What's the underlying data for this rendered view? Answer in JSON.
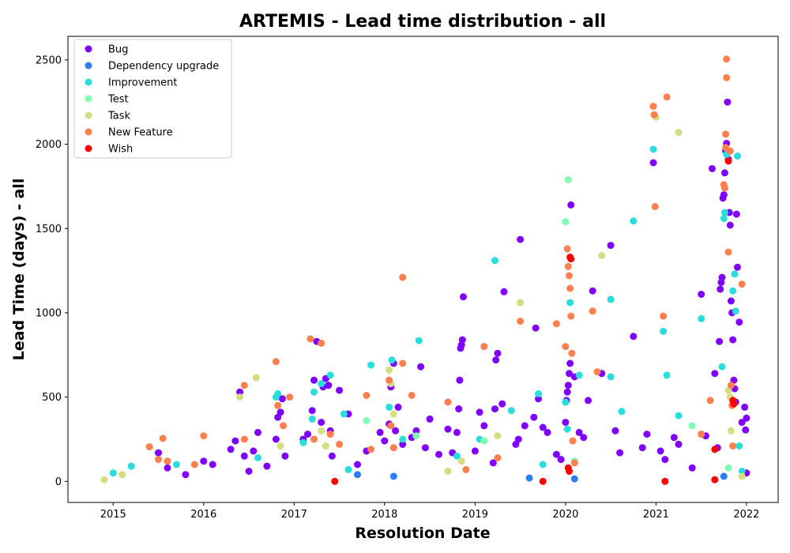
{
  "chart_data": {
    "type": "scatter",
    "title": "ARTEMIS - Lead time distribution - all",
    "xlabel": "Resolution Date",
    "ylabel": "Lead Time (days) - all",
    "xlim": [
      2014.5,
      2022.35
    ],
    "ylim": [
      -125,
      2640
    ],
    "xticks": [
      2015,
      2016,
      2017,
      2018,
      2019,
      2020,
      2021,
      2022
    ],
    "yticks": [
      0,
      500,
      1000,
      1500,
      2000,
      2500
    ],
    "grid": false,
    "legend_position": "top-left",
    "series": [
      {
        "name": "Bug",
        "color": "#8000ff",
        "points": [
          [
            2015.5,
            170
          ],
          [
            2015.6,
            80
          ],
          [
            2015.8,
            40
          ],
          [
            2016.0,
            120
          ],
          [
            2016.1,
            100
          ],
          [
            2016.3,
            190
          ],
          [
            2016.35,
            240
          ],
          [
            2016.4,
            530
          ],
          [
            2016.45,
            150
          ],
          [
            2016.5,
            60
          ],
          [
            2016.55,
            180
          ],
          [
            2016.6,
            290
          ],
          [
            2016.7,
            90
          ],
          [
            2016.8,
            250
          ],
          [
            2016.82,
            380
          ],
          [
            2016.85,
            410
          ],
          [
            2016.87,
            490
          ],
          [
            2016.9,
            150
          ],
          [
            2017.1,
            250
          ],
          [
            2017.15,
            280
          ],
          [
            2017.2,
            420
          ],
          [
            2017.22,
            600
          ],
          [
            2017.25,
            830
          ],
          [
            2017.3,
            350
          ],
          [
            2017.32,
            560
          ],
          [
            2017.35,
            610
          ],
          [
            2017.38,
            570
          ],
          [
            2017.4,
            300
          ],
          [
            2017.42,
            150
          ],
          [
            2017.5,
            540
          ],
          [
            2017.6,
            400
          ],
          [
            2017.7,
            100
          ],
          [
            2017.8,
            180
          ],
          [
            2017.95,
            290
          ],
          [
            2018.0,
            240
          ],
          [
            2018.05,
            340
          ],
          [
            2018.07,
            560
          ],
          [
            2018.1,
            700
          ],
          [
            2018.12,
            300
          ],
          [
            2018.15,
            440
          ],
          [
            2018.2,
            220
          ],
          [
            2018.3,
            260
          ],
          [
            2018.35,
            300
          ],
          [
            2018.4,
            680
          ],
          [
            2018.45,
            200
          ],
          [
            2018.5,
            370
          ],
          [
            2018.6,
            160
          ],
          [
            2018.7,
            310
          ],
          [
            2018.75,
            170
          ],
          [
            2018.8,
            290
          ],
          [
            2018.82,
            430
          ],
          [
            2018.83,
            600
          ],
          [
            2018.84,
            790
          ],
          [
            2018.85,
            810
          ],
          [
            2018.86,
            840
          ],
          [
            2018.87,
            1095
          ],
          [
            2019.0,
            180
          ],
          [
            2019.05,
            410
          ],
          [
            2019.1,
            330
          ],
          [
            2019.2,
            110
          ],
          [
            2019.22,
            430
          ],
          [
            2019.23,
            720
          ],
          [
            2019.25,
            760
          ],
          [
            2019.3,
            460
          ],
          [
            2019.32,
            1125
          ],
          [
            2019.45,
            220
          ],
          [
            2019.48,
            250
          ],
          [
            2019.5,
            1435
          ],
          [
            2019.55,
            330
          ],
          [
            2019.65,
            380
          ],
          [
            2019.67,
            910
          ],
          [
            2019.7,
            490
          ],
          [
            2019.75,
            320
          ],
          [
            2019.8,
            290
          ],
          [
            2019.9,
            160
          ],
          [
            2019.95,
            130
          ],
          [
            2020.0,
            350
          ],
          [
            2020.01,
            480
          ],
          [
            2020.02,
            530
          ],
          [
            2020.03,
            570
          ],
          [
            2020.04,
            640
          ],
          [
            2020.05,
            700
          ],
          [
            2020.06,
            1640
          ],
          [
            2020.1,
            620
          ],
          [
            2020.15,
            290
          ],
          [
            2020.2,
            260
          ],
          [
            2020.25,
            480
          ],
          [
            2020.3,
            1130
          ],
          [
            2020.4,
            640
          ],
          [
            2020.5,
            1400
          ],
          [
            2020.55,
            300
          ],
          [
            2020.6,
            170
          ],
          [
            2020.75,
            860
          ],
          [
            2020.85,
            200
          ],
          [
            2020.9,
            280
          ],
          [
            2020.97,
            1890
          ],
          [
            2021.05,
            180
          ],
          [
            2021.1,
            130
          ],
          [
            2021.2,
            260
          ],
          [
            2021.25,
            220
          ],
          [
            2021.4,
            80
          ],
          [
            2021.5,
            1110
          ],
          [
            2021.55,
            270
          ],
          [
            2021.62,
            1855
          ],
          [
            2021.65,
            640
          ],
          [
            2021.68,
            200
          ],
          [
            2021.7,
            830
          ],
          [
            2021.71,
            1140
          ],
          [
            2021.72,
            1180
          ],
          [
            2021.73,
            1210
          ],
          [
            2021.74,
            1680
          ],
          [
            2021.75,
            1700
          ],
          [
            2021.76,
            1830
          ],
          [
            2021.77,
            1960
          ],
          [
            2021.78,
            2005
          ],
          [
            2021.79,
            2250
          ],
          [
            2021.8,
            1910
          ],
          [
            2021.81,
            1595
          ],
          [
            2021.82,
            1520
          ],
          [
            2021.83,
            1070
          ],
          [
            2021.84,
            1000
          ],
          [
            2021.85,
            840
          ],
          [
            2021.86,
            600
          ],
          [
            2021.87,
            550
          ],
          [
            2021.88,
            470
          ],
          [
            2021.89,
            1585
          ],
          [
            2021.9,
            1270
          ],
          [
            2021.92,
            945
          ],
          [
            2021.95,
            350
          ],
          [
            2021.98,
            440
          ],
          [
            2021.99,
            305
          ],
          [
            2022.0,
            375
          ],
          [
            2022.0,
            50
          ]
        ]
      },
      {
        "name": "Dependency upgrade",
        "color": "#2c7ef7",
        "points": [
          [
            2017.7,
            40
          ],
          [
            2018.1,
            30
          ],
          [
            2019.6,
            20
          ],
          [
            2020.1,
            15
          ],
          [
            2021.75,
            30
          ]
        ]
      },
      {
        "name": "Improvement",
        "color": "#2adddd",
        "points": [
          [
            2015.0,
            50
          ],
          [
            2015.2,
            90
          ],
          [
            2015.7,
            100
          ],
          [
            2016.6,
            140
          ],
          [
            2016.8,
            500
          ],
          [
            2016.82,
            520
          ],
          [
            2017.1,
            230
          ],
          [
            2017.2,
            370
          ],
          [
            2017.22,
            530
          ],
          [
            2017.3,
            580
          ],
          [
            2017.4,
            630
          ],
          [
            2017.55,
            400
          ],
          [
            2017.6,
            70
          ],
          [
            2017.85,
            690
          ],
          [
            2018.05,
            440
          ],
          [
            2018.08,
            720
          ],
          [
            2018.2,
            250
          ],
          [
            2018.38,
            835
          ],
          [
            2018.8,
            150
          ],
          [
            2019.05,
            250
          ],
          [
            2019.22,
            1310
          ],
          [
            2019.4,
            420
          ],
          [
            2019.7,
            520
          ],
          [
            2019.75,
            100
          ],
          [
            2020.0,
            470
          ],
          [
            2020.02,
            310
          ],
          [
            2020.05,
            1060
          ],
          [
            2020.15,
            630
          ],
          [
            2020.5,
            1080
          ],
          [
            2020.5,
            620
          ],
          [
            2020.62,
            415
          ],
          [
            2020.75,
            1545
          ],
          [
            2020.97,
            1970
          ],
          [
            2021.08,
            890
          ],
          [
            2021.12,
            630
          ],
          [
            2021.25,
            390
          ],
          [
            2021.5,
            965
          ],
          [
            2021.73,
            680
          ],
          [
            2021.75,
            1560
          ],
          [
            2021.76,
            1595
          ],
          [
            2021.78,
            1940
          ],
          [
            2021.85,
            1130
          ],
          [
            2021.87,
            1230
          ],
          [
            2021.88,
            1010
          ],
          [
            2021.9,
            1930
          ],
          [
            2021.92,
            210
          ],
          [
            2021.95,
            60
          ]
        ]
      },
      {
        "name": "Test",
        "color": "#80ffb4",
        "points": [
          [
            2017.8,
            360
          ],
          [
            2018.35,
            270
          ],
          [
            2019.1,
            240
          ],
          [
            2020.0,
            1540
          ],
          [
            2020.03,
            1790
          ],
          [
            2020.1,
            120
          ],
          [
            2021.4,
            330
          ],
          [
            2021.8,
            80
          ]
        ]
      },
      {
        "name": "Task",
        "color": "#d4dd80",
        "points": [
          [
            2014.9,
            10
          ],
          [
            2015.1,
            40
          ],
          [
            2016.4,
            500
          ],
          [
            2016.58,
            615
          ],
          [
            2016.85,
            210
          ],
          [
            2017.3,
            300
          ],
          [
            2017.35,
            210
          ],
          [
            2018.05,
            660
          ],
          [
            2018.07,
            580
          ],
          [
            2018.1,
            400
          ],
          [
            2018.7,
            60
          ],
          [
            2018.85,
            120
          ],
          [
            2019.25,
            270
          ],
          [
            2019.5,
            1060
          ],
          [
            2020.4,
            1340
          ],
          [
            2021.0,
            2160
          ],
          [
            2021.25,
            2070
          ],
          [
            2021.8,
            540
          ],
          [
            2021.82,
            500
          ],
          [
            2021.83,
            300
          ],
          [
            2021.95,
            30
          ]
        ]
      },
      {
        "name": "New Feature",
        "color": "#ff7f4e",
        "points": [
          [
            2015.4,
            205
          ],
          [
            2015.5,
            130
          ],
          [
            2015.55,
            255
          ],
          [
            2015.6,
            120
          ],
          [
            2015.9,
            100
          ],
          [
            2016.0,
            270
          ],
          [
            2016.45,
            250
          ],
          [
            2016.45,
            570
          ],
          [
            2016.8,
            710
          ],
          [
            2016.82,
            450
          ],
          [
            2016.88,
            330
          ],
          [
            2016.95,
            500
          ],
          [
            2017.18,
            845
          ],
          [
            2017.22,
            250
          ],
          [
            2017.3,
            820
          ],
          [
            2017.4,
            280
          ],
          [
            2017.5,
            220
          ],
          [
            2017.8,
            510
          ],
          [
            2017.85,
            190
          ],
          [
            2018.05,
            600
          ],
          [
            2018.07,
            330
          ],
          [
            2018.1,
            200
          ],
          [
            2018.2,
            1210
          ],
          [
            2018.2,
            700
          ],
          [
            2018.3,
            510
          ],
          [
            2018.7,
            470
          ],
          [
            2018.9,
            70
          ],
          [
            2019.1,
            800
          ],
          [
            2019.25,
            140
          ],
          [
            2019.5,
            950
          ],
          [
            2019.9,
            935
          ],
          [
            2020.0,
            800
          ],
          [
            2020.02,
            1380
          ],
          [
            2020.03,
            1275
          ],
          [
            2020.04,
            1220
          ],
          [
            2020.05,
            1145
          ],
          [
            2020.06,
            980
          ],
          [
            2020.07,
            760
          ],
          [
            2020.08,
            240
          ],
          [
            2020.1,
            110
          ],
          [
            2020.3,
            1010
          ],
          [
            2020.35,
            650
          ],
          [
            2020.97,
            2225
          ],
          [
            2020.98,
            2175
          ],
          [
            2020.99,
            1630
          ],
          [
            2021.08,
            980
          ],
          [
            2021.12,
            2280
          ],
          [
            2021.5,
            280
          ],
          [
            2021.6,
            480
          ],
          [
            2021.75,
            1760
          ],
          [
            2021.76,
            1740
          ],
          [
            2021.77,
            2060
          ],
          [
            2021.77,
            1980
          ],
          [
            2021.78,
            2505
          ],
          [
            2021.78,
            2395
          ],
          [
            2021.8,
            1360
          ],
          [
            2021.82,
            1960
          ],
          [
            2021.83,
            570
          ],
          [
            2021.84,
            450
          ],
          [
            2021.85,
            210
          ],
          [
            2021.95,
            1170
          ]
        ]
      },
      {
        "name": "Wish",
        "color": "#ff0000",
        "points": [
          [
            2017.45,
            0
          ],
          [
            2019.75,
            0
          ],
          [
            2020.03,
            80
          ],
          [
            2020.04,
            60
          ],
          [
            2020.05,
            1330
          ],
          [
            2020.06,
            1320
          ],
          [
            2021.1,
            0
          ],
          [
            2021.65,
            190
          ],
          [
            2021.65,
            10
          ],
          [
            2021.8,
            1900
          ],
          [
            2021.85,
            480
          ],
          [
            2021.86,
            460
          ]
        ]
      }
    ]
  }
}
